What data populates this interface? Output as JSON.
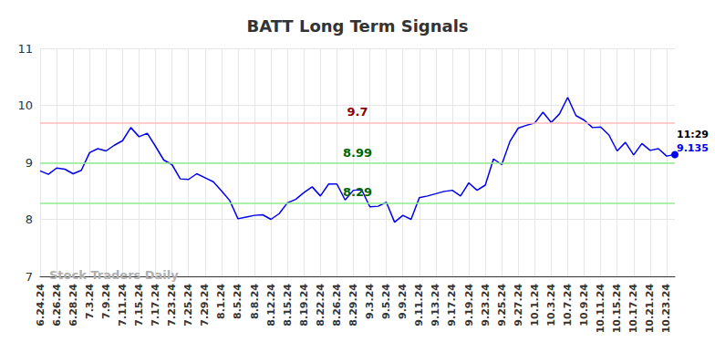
{
  "chart_data": {
    "type": "line",
    "title": "BATT Long Term Signals",
    "watermark": "Stock Traders Daily",
    "categories": [
      "6.24.24",
      null,
      "6.26.24",
      null,
      "6.28.24",
      null,
      "7.3.24",
      null,
      "7.9.24",
      null,
      "7.11.24",
      null,
      "7.15.24",
      null,
      "7.17.24",
      null,
      "7.23.24",
      null,
      "7.25.24",
      null,
      "7.29.24",
      null,
      "8.1.24",
      null,
      "8.5.24",
      null,
      "8.8.24",
      null,
      "8.12.24",
      null,
      "8.15.24",
      null,
      "8.19.24",
      null,
      "8.22.24",
      null,
      "8.26.24",
      null,
      "8.29.24",
      null,
      "9.3.24",
      null,
      "9.5.24",
      null,
      "9.9.24",
      null,
      "9.11.24",
      null,
      "9.13.24",
      null,
      "9.17.24",
      null,
      "9.19.24",
      null,
      "9.23.24",
      null,
      "9.25.24",
      null,
      "9.27.24",
      null,
      "10.1.24",
      null,
      "10.3.24",
      null,
      "10.7.24",
      null,
      "10.9.24",
      null,
      "10.11.24",
      null,
      "10.15.24",
      null,
      "10.17.24",
      null,
      "10.21.24",
      null,
      "10.23.24",
      null
    ],
    "values": [
      8.85,
      8.79,
      8.9,
      8.88,
      8.8,
      8.86,
      9.17,
      9.24,
      9.2,
      9.3,
      9.38,
      9.61,
      9.45,
      9.51,
      9.28,
      9.04,
      8.96,
      8.71,
      8.7,
      8.8,
      8.73,
      8.66,
      8.5,
      8.33,
      8.01,
      8.04,
      8.07,
      8.08,
      8.0,
      8.1,
      8.29,
      8.35,
      8.47,
      8.57,
      8.41,
      8.62,
      8.62,
      8.34,
      8.51,
      8.52,
      8.22,
      8.23,
      8.3,
      7.95,
      8.07,
      8.0,
      8.38,
      8.41,
      8.45,
      8.49,
      8.51,
      8.41,
      8.64,
      8.51,
      8.6,
      9.06,
      8.96,
      9.37,
      9.6,
      9.65,
      9.69,
      9.88,
      9.7,
      9.85,
      10.14,
      9.82,
      9.74,
      9.61,
      9.62,
      9.48,
      9.2,
      9.35,
      9.13,
      9.33,
      9.21,
      9.24,
      9.11,
      9.135
    ],
    "color": "#0000ee",
    "ylim": [
      7,
      11
    ],
    "yticks": [
      7,
      8,
      9,
      10,
      11
    ],
    "grid": true,
    "levels": [
      {
        "value": 9.7,
        "color": "#ffbbbb",
        "label_color": "#8b0000"
      },
      {
        "value": 8.99,
        "color": "#90ee90",
        "label_color": "#006400"
      },
      {
        "value": 8.29,
        "color": "#90ee90",
        "label_color": "#006400"
      }
    ],
    "last_point": {
      "time": "11:29",
      "value": 9.135
    }
  }
}
